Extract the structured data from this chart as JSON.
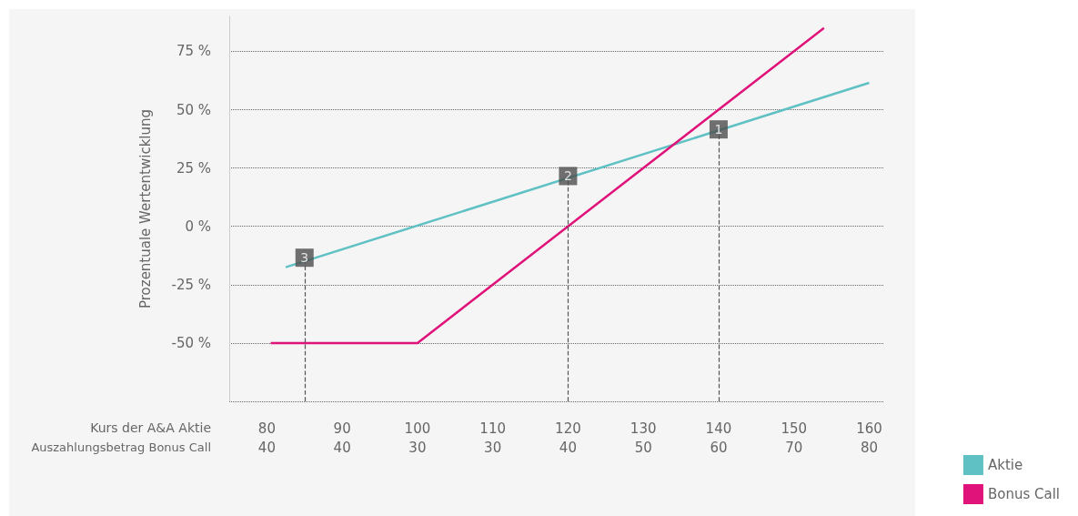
{
  "chart_data": {
    "type": "line",
    "ylabel": "Prozentuale Wertentwicklung",
    "xlabel": "Kurs der A&A Aktie",
    "xlim": [
      75,
      162
    ],
    "xticks": [
      80,
      90,
      100,
      110,
      120,
      130,
      140,
      150,
      160
    ],
    "ylim": [
      -75,
      90
    ],
    "yticks": [
      {
        "value": -75,
        "label": null
      },
      {
        "value": -50,
        "label": "-50 %"
      },
      {
        "value": -25,
        "label": "-25 %"
      },
      {
        "value": 0,
        "label": "0 %"
      },
      {
        "value": 25,
        "label": "25 %"
      },
      {
        "value": 50,
        "label": "50 %"
      },
      {
        "value": 75,
        "label": "75 %"
      }
    ],
    "grid": "y",
    "legend": "bottom right",
    "series": [
      {
        "name": "Aktie",
        "color": "#5fc1c3",
        "x": [
          82.5,
          160
        ],
        "values": [
          -17.5,
          61.5
        ]
      },
      {
        "name": "Bonus Call",
        "color": "#e0137a",
        "x": [
          80.5,
          100,
          154
        ],
        "values": [
          -50,
          -50,
          85
        ]
      }
    ],
    "annotations": [
      {
        "text": "1",
        "x": 140,
        "y": 40
      },
      {
        "text": "2",
        "x": 120,
        "y": 20
      },
      {
        "text": "3",
        "x": 85,
        "y": -15
      },
      "Auszahlungsbetrag Bonus Call",
      "40",
      "40",
      "30",
      "30",
      "40",
      "50",
      "60",
      "70",
      "80"
    ]
  }
}
